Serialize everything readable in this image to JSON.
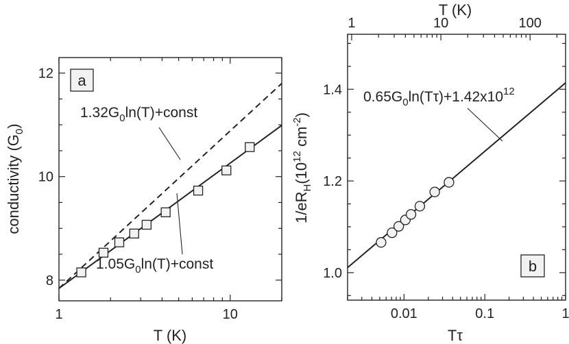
{
  "chart_data": [
    {
      "type": "scatter",
      "panel_label": "a",
      "xlabel": "T (K)",
      "ylabel_main": "conductivity (G",
      "ylabel_sub": "0",
      "ylabel_end": ")",
      "xscale": "log",
      "xlim": [
        1,
        20
      ],
      "ylim": [
        7.6,
        12.3
      ],
      "xticks": [
        1,
        10
      ],
      "xtick_labels": [
        "1",
        "10"
      ],
      "yticks": [
        8,
        10,
        12
      ],
      "ytick_labels": [
        "8",
        "10",
        "12"
      ],
      "series": [
        {
          "marker": "square",
          "x": [
            1.35,
            1.82,
            2.25,
            2.75,
            3.25,
            4.2,
            6.5,
            9.5,
            13.0
          ],
          "y": [
            8.15,
            8.53,
            8.73,
            8.9,
            9.07,
            9.31,
            9.73,
            10.12,
            10.57
          ]
        }
      ],
      "lines": [
        {
          "style": "dashed",
          "x": [
            1,
            20
          ],
          "y": [
            7.84,
            11.8
          ]
        },
        {
          "style": "solid",
          "x": [
            1,
            20
          ],
          "y": [
            7.84,
            10.99
          ]
        }
      ],
      "annotations": [
        {
          "id": "upper",
          "parts": [
            "1.32G",
            "0",
            "ln(T)+const"
          ]
        },
        {
          "id": "lower",
          "parts": [
            "1.05G",
            "0",
            "ln(T)+const"
          ]
        }
      ]
    },
    {
      "type": "scatter",
      "panel_label": "b",
      "xlabel": "Tτ",
      "top_xlabel": "T (K)",
      "ylabel_main": "1/eR",
      "ylabel_sub": "H",
      "ylabel_mid": "(10",
      "ylabel_sup1": "12",
      "ylabel_mid2": " cm",
      "ylabel_sup2": "-2",
      "ylabel_end": ")",
      "xscale": "log",
      "xlim": [
        0.002,
        1
      ],
      "ylim": [
        0.94,
        1.52
      ],
      "xticks": [
        0.01,
        0.1,
        1
      ],
      "xtick_labels": [
        "0.01",
        "0.1",
        "1"
      ],
      "top_xticks": [
        1,
        10,
        100
      ],
      "top_xtick_labels": [
        "1",
        "10",
        "100"
      ],
      "yticks": [
        1.0,
        1.2,
        1.4
      ],
      "ytick_labels": [
        "1.0",
        "1.2",
        "1.4"
      ],
      "series": [
        {
          "marker": "circle",
          "x": [
            0.0052,
            0.0071,
            0.0086,
            0.0104,
            0.0122,
            0.0157,
            0.024,
            0.036
          ],
          "y": [
            1.066,
            1.087,
            1.101,
            1.115,
            1.127,
            1.145,
            1.176,
            1.197
          ]
        }
      ],
      "lines": [
        {
          "style": "solid",
          "x": [
            0.002,
            1
          ],
          "y": [
            1.011,
            1.414
          ]
        }
      ],
      "annotations": [
        {
          "id": "fit",
          "parts": [
            "0.65G",
            "0",
            "ln(T",
            "τ",
            ")+1.42x10",
            "12"
          ]
        }
      ]
    }
  ]
}
